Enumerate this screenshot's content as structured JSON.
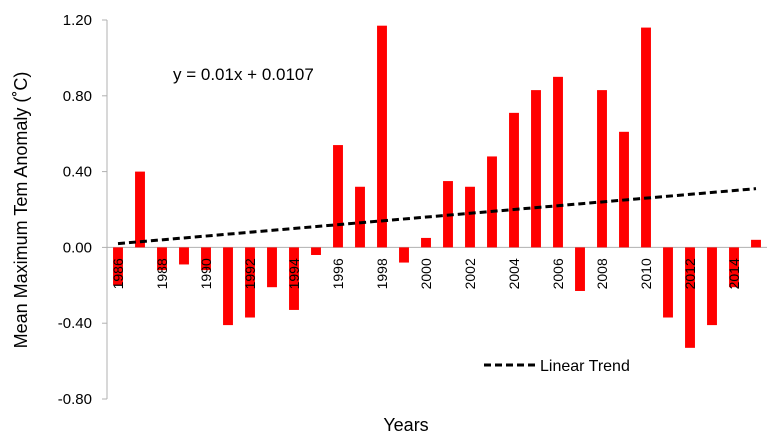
{
  "chart_data": {
    "type": "bar",
    "title": "",
    "xlabel": "Years",
    "ylabel": "Mean Maximum Tem Anomaly (˚C)",
    "ylim": [
      -0.8,
      1.2
    ],
    "yticks": [
      "-0.80",
      "-0.40",
      "0.00",
      "0.40",
      "0.80",
      "1.20"
    ],
    "grid": false,
    "bar_color": "#ff0000",
    "years": [
      1986,
      1987,
      1988,
      1989,
      1990,
      1991,
      1992,
      1993,
      1994,
      1995,
      1996,
      1997,
      1998,
      1999,
      2000,
      2001,
      2002,
      2003,
      2004,
      2005,
      2006,
      2007,
      2008,
      2009,
      2010,
      2011,
      2012,
      2013,
      2014,
      2015
    ],
    "x_tick_labels": [
      "1986",
      "1988",
      "1990",
      "1992",
      "1994",
      "1996",
      "1998",
      "2000",
      "2002",
      "2004",
      "2006",
      "2008",
      "2010",
      "2012",
      "2014"
    ],
    "values": [
      -0.2,
      0.4,
      -0.12,
      -0.09,
      -0.12,
      -0.41,
      -0.37,
      -0.21,
      -0.33,
      -0.04,
      0.54,
      0.32,
      1.17,
      -0.08,
      0.05,
      0.35,
      0.32,
      0.48,
      0.71,
      0.83,
      0.9,
      -0.23,
      0.83,
      0.61,
      1.16,
      -0.37,
      -0.53,
      -0.41,
      -0.21,
      0.04
    ],
    "trend": {
      "name": "Linear Trend",
      "equation": "y = 0.01x + 0.0107",
      "start": 0.02,
      "end": 0.31,
      "style": "dashed",
      "color": "#000000"
    },
    "legend_position": "bottom-right"
  }
}
